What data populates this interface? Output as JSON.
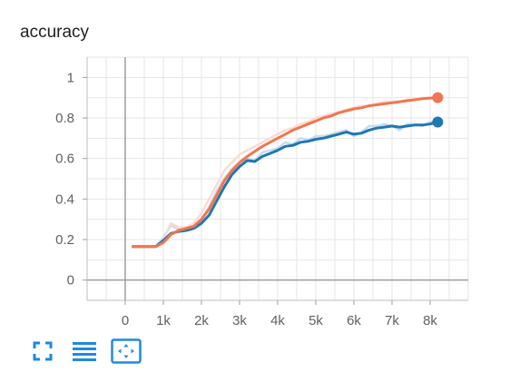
{
  "chart_data": {
    "type": "line",
    "title": "accuracy",
    "xlim": [
      -1000,
      9000
    ],
    "ylim": [
      -0.1,
      1.1
    ],
    "x_ticks": [
      0,
      1000,
      2000,
      3000,
      4000,
      5000,
      6000,
      7000,
      8000
    ],
    "x_tick_labels": [
      "0",
      "1k",
      "2k",
      "3k",
      "4k",
      "5k",
      "6k",
      "7k",
      "8k"
    ],
    "y_ticks": [
      0,
      0.2,
      0.4,
      0.6,
      0.8,
      1.0
    ],
    "y_tick_labels": [
      "0",
      "0.2",
      "0.4",
      "0.6",
      "0.8",
      "1"
    ],
    "grid": true,
    "series": [
      {
        "color": "#1f77b4",
        "raw_color": "#c7dcec",
        "x": [
          200,
          400,
          600,
          800,
          1000,
          1200,
          1400,
          1600,
          1800,
          2000,
          2200,
          2400,
          2600,
          2800,
          3000,
          3200,
          3400,
          3600,
          3800,
          4000,
          4200,
          4400,
          4600,
          4800,
          5000,
          5200,
          5400,
          5600,
          5800,
          6000,
          6200,
          6400,
          6600,
          6800,
          7000,
          7200,
          7400,
          7600,
          7800,
          8000,
          8200
        ],
        "y": [
          0.165,
          0.165,
          0.165,
          0.165,
          0.195,
          0.23,
          0.24,
          0.245,
          0.255,
          0.28,
          0.32,
          0.39,
          0.46,
          0.52,
          0.56,
          0.59,
          0.585,
          0.61,
          0.625,
          0.64,
          0.66,
          0.665,
          0.68,
          0.685,
          0.695,
          0.7,
          0.71,
          0.72,
          0.73,
          0.72,
          0.725,
          0.74,
          0.75,
          0.755,
          0.76,
          0.755,
          0.76,
          0.765,
          0.765,
          0.77,
          0.78
        ],
        "raw_y": [
          0.165,
          0.165,
          0.165,
          0.165,
          0.21,
          0.27,
          0.25,
          0.26,
          0.27,
          0.3,
          0.36,
          0.44,
          0.5,
          0.55,
          0.58,
          0.6,
          0.59,
          0.63,
          0.64,
          0.65,
          0.68,
          0.67,
          0.7,
          0.69,
          0.71,
          0.71,
          0.72,
          0.73,
          0.74,
          0.71,
          0.73,
          0.76,
          0.76,
          0.77,
          0.76,
          0.74,
          0.77,
          0.77,
          0.76,
          0.78,
          0.78
        ],
        "end_value": 0.78
      },
      {
        "color": "#f2754f",
        "raw_color": "#f7dcd3",
        "x": [
          200,
          400,
          600,
          800,
          1000,
          1200,
          1400,
          1600,
          1800,
          2000,
          2200,
          2400,
          2600,
          2800,
          3000,
          3200,
          3400,
          3600,
          3800,
          4000,
          4200,
          4400,
          4600,
          4800,
          5000,
          5200,
          5400,
          5600,
          5800,
          6000,
          6200,
          6400,
          6600,
          6800,
          7000,
          7200,
          7400,
          7600,
          7800,
          8000,
          8200
        ],
        "y": [
          0.165,
          0.165,
          0.165,
          0.165,
          0.185,
          0.225,
          0.245,
          0.255,
          0.265,
          0.3,
          0.35,
          0.42,
          0.49,
          0.54,
          0.58,
          0.61,
          0.635,
          0.66,
          0.68,
          0.7,
          0.72,
          0.74,
          0.755,
          0.77,
          0.785,
          0.8,
          0.81,
          0.825,
          0.835,
          0.845,
          0.85,
          0.86,
          0.865,
          0.87,
          0.875,
          0.88,
          0.885,
          0.89,
          0.895,
          0.898,
          0.9
        ],
        "raw_y": [
          0.165,
          0.165,
          0.165,
          0.165,
          0.2,
          0.28,
          0.26,
          0.26,
          0.28,
          0.33,
          0.4,
          0.47,
          0.54,
          0.58,
          0.62,
          0.64,
          0.66,
          0.68,
          0.7,
          0.72,
          0.74,
          0.75,
          0.77,
          0.78,
          0.8,
          0.81,
          0.82,
          0.83,
          0.84,
          0.85,
          0.86,
          0.86,
          0.87,
          0.88,
          0.88,
          0.88,
          0.89,
          0.89,
          0.9,
          0.9,
          0.9
        ],
        "end_value": 0.9
      }
    ]
  },
  "toolbar": {
    "buttons": [
      {
        "name": "fullscreen",
        "icon": "fullscreen-icon"
      },
      {
        "name": "toggle-log-scale",
        "icon": "menu-lines-icon"
      },
      {
        "name": "fit-domain",
        "icon": "fit-domain-icon"
      }
    ],
    "accent": "#1e88e5"
  }
}
